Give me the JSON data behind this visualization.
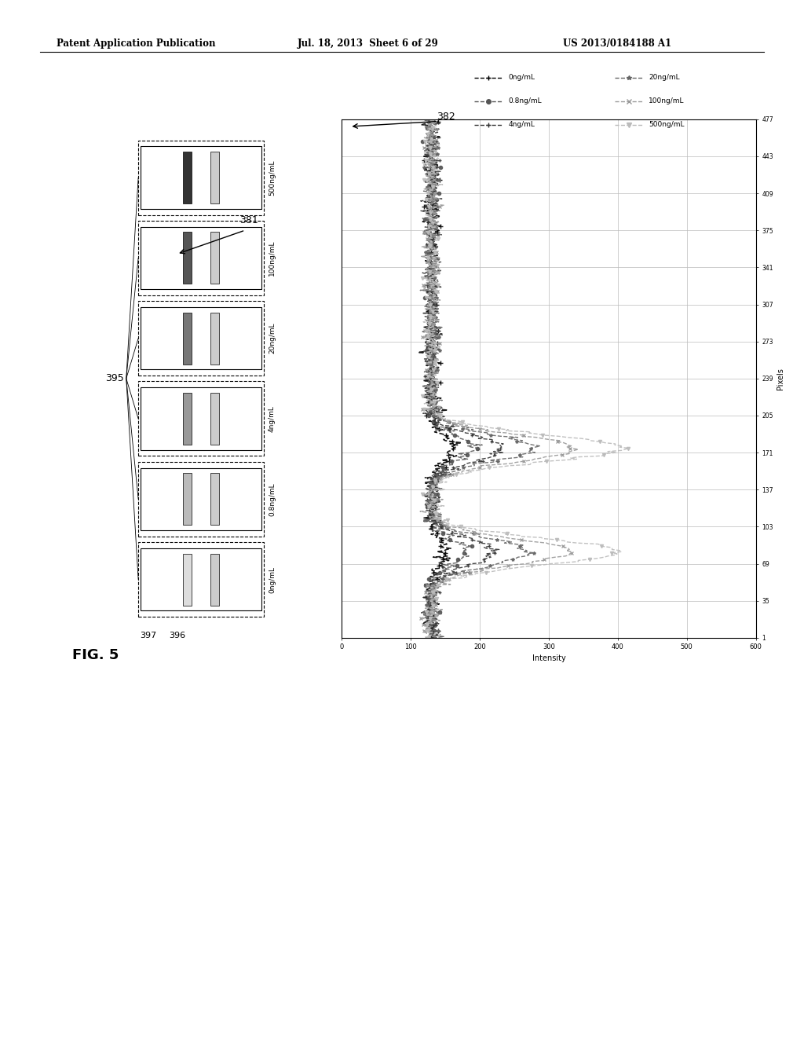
{
  "header_left": "Patent Application Publication",
  "header_mid": "Jul. 18, 2013  Sheet 6 of 29",
  "header_right": "US 2013/0184188 A1",
  "fig_label": "FIG. 5",
  "ref_381": "381",
  "ref_382": "382",
  "ref_395": "395",
  "ref_396": "396",
  "ref_397": "397",
  "strip_labels": [
    "500ng/mL",
    "100ng/mL",
    "20ng/mL",
    "4ng/mL",
    "0.8ng/mL",
    "0ng/mL"
  ],
  "legend_labels": [
    "0ng/mL",
    "0.8ng/mL",
    "4ng/mL",
    "20ng/mL",
    "100ng/mL",
    "500ng/mL"
  ],
  "x_axis_label": "Intensity",
  "y_axis_label": "Pixels",
  "y_ticks": [
    1,
    35,
    69,
    103,
    137,
    171,
    205,
    239,
    273,
    307,
    341,
    375,
    409,
    443,
    477
  ],
  "x_ticks": [
    0,
    100,
    200,
    300,
    400,
    500,
    600
  ],
  "x_lim": [
    0,
    600
  ],
  "y_lim": [
    1,
    477
  ],
  "bg_color": "#ffffff",
  "line_color": "#000000",
  "grid_color": "#bbbbbb"
}
